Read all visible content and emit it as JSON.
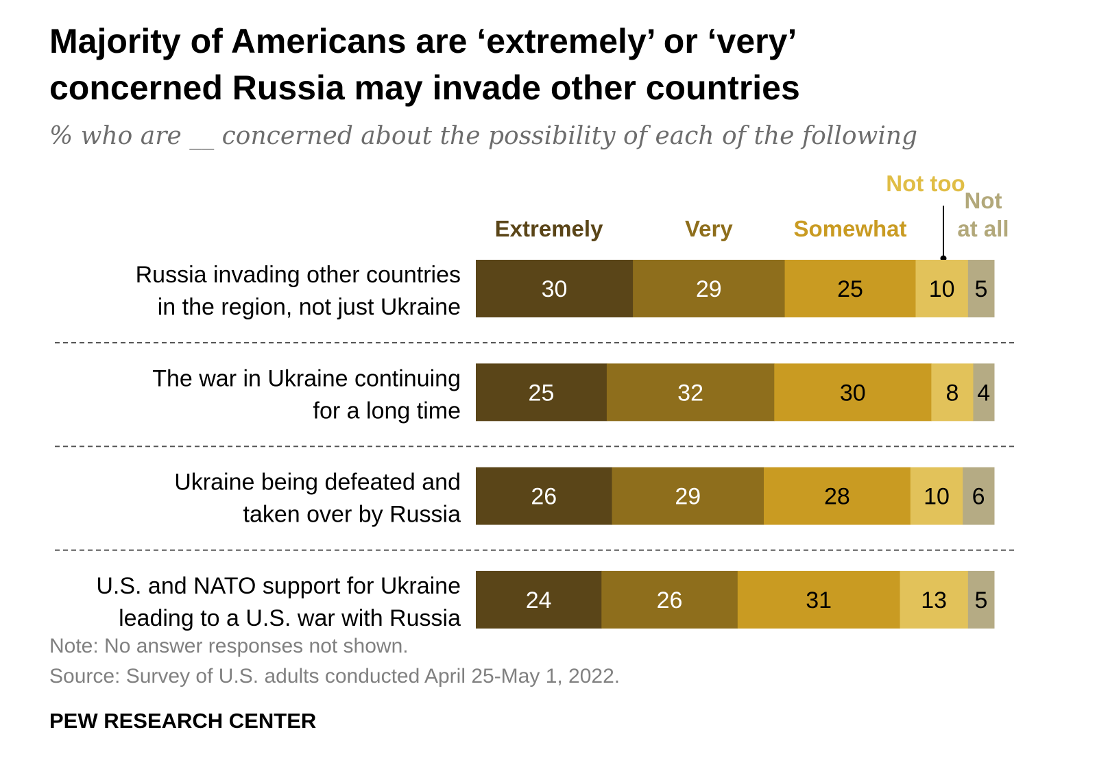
{
  "title_line1": "Majority of Americans are ‘extremely’ or ‘very’",
  "title_line2": "concerned Russia may invade other countries",
  "subtitle": "% who are __ concerned about the possibility of each of the following",
  "note": "Note: No answer responses not shown.",
  "source": "Source: Survey of U.S. adults conducted April 25-May 1, 2022.",
  "brand": "PEW RESEARCH CENTER",
  "chart_data": {
    "type": "bar",
    "orientation": "horizontal",
    "stacked": true,
    "categories": [
      [
        "Russia invading other countries",
        "in the region, not just Ukraine"
      ],
      [
        "The war in Ukraine continuing",
        "for a long time"
      ],
      [
        "Ukraine being defeated and",
        "taken over by Russia"
      ],
      [
        "U.S. and NATO support for Ukraine",
        "leading to a U.S. war with Russia"
      ]
    ],
    "series": [
      {
        "name": "Extremely",
        "color": "#5a4518",
        "text_color": "#ffffff",
        "values": [
          30,
          25,
          26,
          24
        ]
      },
      {
        "name": "Very",
        "color": "#8e6e1c",
        "text_color": "#ffffff",
        "values": [
          29,
          32,
          29,
          26
        ]
      },
      {
        "name": "Somewhat",
        "color": "#c99b22",
        "text_color": "#000000",
        "values": [
          25,
          30,
          28,
          31
        ]
      },
      {
        "name": "Not too",
        "color": "#e2c25a",
        "text_color": "#000000",
        "values": [
          10,
          8,
          10,
          13
        ]
      },
      {
        "name": "Not at all",
        "color": "#b5ab84",
        "text_color": "#000000",
        "values": [
          5,
          4,
          6,
          5
        ]
      }
    ],
    "legend_labels": [
      {
        "lines": [
          "Extremely"
        ],
        "color": "#5a4518"
      },
      {
        "lines": [
          "Very"
        ],
        "color": "#8e6e1c"
      },
      {
        "lines": [
          "Somewhat"
        ],
        "color": "#c99b22"
      },
      {
        "lines": [
          "Not too"
        ],
        "color": "#e0bd45"
      },
      {
        "lines": [
          "Not",
          "at all"
        ],
        "color": "#b2a87a"
      }
    ],
    "legend_placement": "top",
    "grid": false
  }
}
